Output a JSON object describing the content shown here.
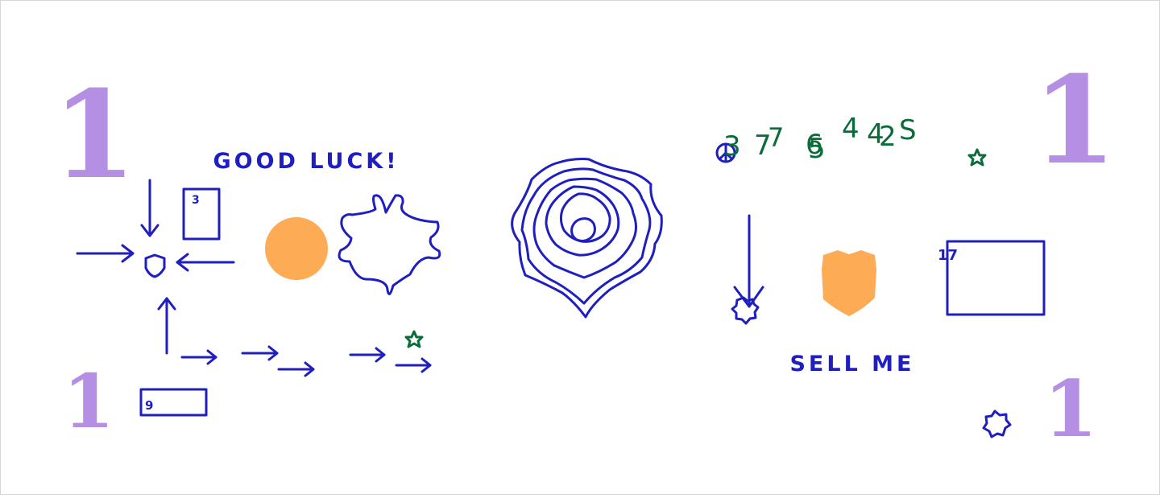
{
  "corner_marks": {
    "top_left": "1",
    "bottom_left": "1",
    "top_right": "1",
    "bottom_right": "1"
  },
  "texts": {
    "good_luck": "GOOD LUCK!",
    "sell_me": "SELL ME"
  },
  "box_labels": {
    "box_3": "3",
    "box_9": "9",
    "box_17": "17"
  },
  "green_sequence": [
    "3",
    "7",
    "7",
    "6",
    "5",
    "4",
    "4",
    "2",
    "S"
  ],
  "colors": {
    "ink": "#1f1fbf",
    "corner": "#b48fe3",
    "accent": "#fdab55",
    "green": "#0b6b3a"
  },
  "icons": [
    "peace-icon",
    "star-icon",
    "shield-icon",
    "badge-icon",
    "seal-icon",
    "arrow-icon"
  ]
}
